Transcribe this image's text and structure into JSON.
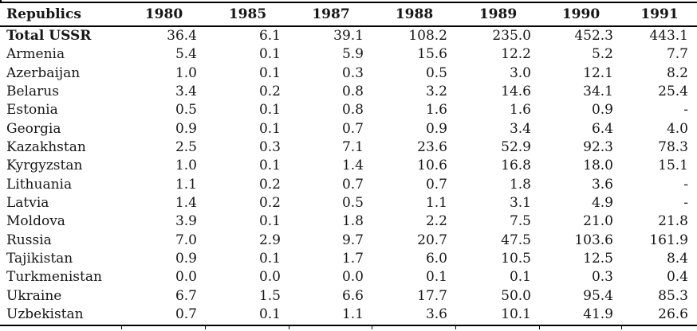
{
  "table": {
    "header": {
      "republics_label": "Republics",
      "years": [
        "1980",
        "1985",
        "1987",
        "1988",
        "1989",
        "1990",
        "1991"
      ]
    },
    "rows": [
      {
        "name": "Total USSR",
        "bold": true,
        "values": [
          "36.4",
          "6.1",
          "39.1",
          "108.2",
          "235.0",
          "452.3",
          "443.1"
        ]
      },
      {
        "name": "Armenia",
        "bold": false,
        "values": [
          "5.4",
          "0.1",
          "5.9",
          "15.6",
          "12.2",
          "5.2",
          "7.7"
        ]
      },
      {
        "name": "Azerbaijan",
        "bold": false,
        "values": [
          "1.0",
          "0.1",
          "0.3",
          "0.5",
          "3.0",
          "12.1",
          "8.2"
        ]
      },
      {
        "name": "Belarus",
        "bold": false,
        "values": [
          "3.4",
          "0.2",
          "0.8",
          "3.2",
          "14.6",
          "34.1",
          "25.4"
        ]
      },
      {
        "name": "Estonia",
        "bold": false,
        "values": [
          "0.5",
          "0.1",
          "0.8",
          "1.6",
          "1.6",
          "0.9",
          "-"
        ]
      },
      {
        "name": "Georgia",
        "bold": false,
        "values": [
          "0.9",
          "0.1",
          "0.7",
          "0.9",
          "3.4",
          "6.4",
          "4.0"
        ]
      },
      {
        "name": "Kazakhstan",
        "bold": false,
        "values": [
          "2.5",
          "0.3",
          "7.1",
          "23.6",
          "52.9",
          "92.3",
          "78.3"
        ]
      },
      {
        "name": "Kyrgyzstan",
        "bold": false,
        "values": [
          "1.0",
          "0.1",
          "1.4",
          "10.6",
          "16.8",
          "18.0",
          "15.1"
        ]
      },
      {
        "name": "Lithuania",
        "bold": false,
        "values": [
          "1.1",
          "0.2",
          "0.7",
          "0.7",
          "1.8",
          "3.6",
          "-"
        ]
      },
      {
        "name": "Latvia",
        "bold": false,
        "values": [
          "1.4",
          "0.2",
          "0.5",
          "1.1",
          "3.1",
          "4.9",
          "-"
        ]
      },
      {
        "name": "Moldova",
        "bold": false,
        "values": [
          "3.9",
          "0.1",
          "1.8",
          "2.2",
          "7.5",
          "21.0",
          "21.8"
        ]
      },
      {
        "name": "Russia",
        "bold": false,
        "values": [
          "7.0",
          "2.9",
          "9.7",
          "20.7",
          "47.5",
          "103.6",
          "161.9"
        ]
      },
      {
        "name": "Tajikistan",
        "bold": false,
        "values": [
          "0.9",
          "0.1",
          "1.7",
          "6.0",
          "10.5",
          "12.5",
          "8.4"
        ]
      },
      {
        "name": "Turkmenistan",
        "bold": false,
        "values": [
          "0.0",
          "0.0",
          "0.0",
          "0.1",
          "0.1",
          "0.3",
          "0.4"
        ]
      },
      {
        "name": "Ukraine",
        "bold": false,
        "values": [
          "6.7",
          "1.5",
          "6.6",
          "17.7",
          "50.0",
          "95.4",
          "85.3"
        ]
      },
      {
        "name": "Uzbekistan",
        "bold": false,
        "values": [
          "0.7",
          "0.1",
          "1.1",
          "3.6",
          "10.1",
          "41.9",
          "26.6"
        ]
      }
    ],
    "colors": {
      "text": "#161616",
      "border": "#000000",
      "background": "#ffffff"
    }
  }
}
